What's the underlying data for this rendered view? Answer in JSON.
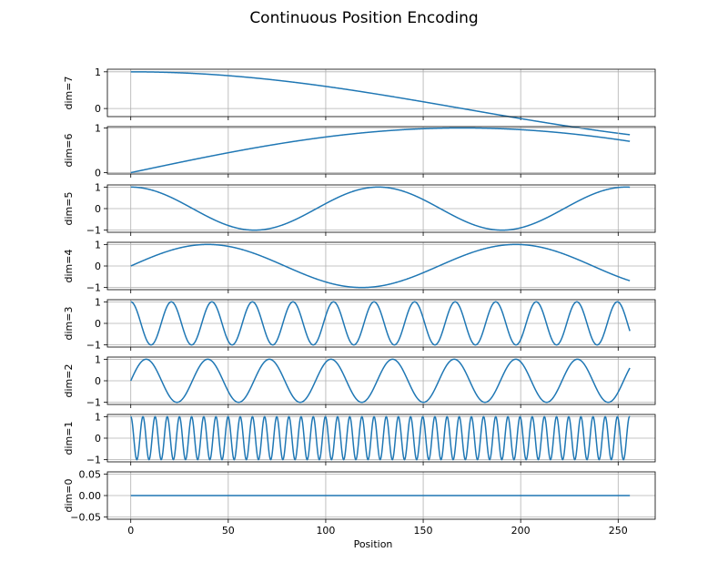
{
  "chart_data": {
    "type": "line",
    "title": "Continuous Position Encoding",
    "xlabel": "Position",
    "x_range": [
      0,
      256
    ],
    "xlim": [
      -12,
      269
    ],
    "xticks": [
      0,
      50,
      100,
      150,
      200,
      250
    ],
    "xtick_labels": [
      "0",
      "50",
      "100",
      "150",
      "200",
      "250"
    ],
    "grid": true,
    "line_color": "#1f77b4",
    "subplots": [
      {
        "ylabel": "dim=7",
        "func": "cos",
        "period": 680,
        "ylim": [
          -0.22,
          1.07
        ],
        "yticks": [
          0,
          1
        ],
        "ytick_labels": [
          "0",
          "1"
        ]
      },
      {
        "ylabel": "dim=6",
        "func": "sin",
        "period": 680,
        "ylim": [
          -0.03,
          1.03
        ],
        "yticks": [
          0,
          1
        ],
        "ytick_labels": [
          "0",
          "1"
        ]
      },
      {
        "ylabel": "dim=5",
        "func": "cos",
        "period": 127,
        "ylim": [
          -1.1,
          1.1
        ],
        "yticks": [
          -1,
          0,
          1
        ],
        "ytick_labels": [
          "−1",
          "0",
          "1"
        ]
      },
      {
        "ylabel": "dim=4",
        "func": "sin",
        "period": 158,
        "ylim": [
          -1.1,
          1.1
        ],
        "yticks": [
          -1,
          0,
          1
        ],
        "ytick_labels": [
          "−1",
          "0",
          "1"
        ]
      },
      {
        "ylabel": "dim=3",
        "func": "cos",
        "period": 20.8,
        "ylim": [
          -1.1,
          1.1
        ],
        "yticks": [
          -1,
          0,
          1
        ],
        "ytick_labels": [
          "−1",
          "0",
          "1"
        ]
      },
      {
        "ylabel": "dim=2",
        "func": "sin",
        "period": 31.6,
        "ylim": [
          -1.1,
          1.1
        ],
        "yticks": [
          -1,
          0,
          1
        ],
        "ytick_labels": [
          "−1",
          "0",
          "1"
        ]
      },
      {
        "ylabel": "dim=1",
        "func": "cos",
        "period": 6.24,
        "ylim": [
          -1.1,
          1.1
        ],
        "yticks": [
          -1,
          0,
          1
        ],
        "ytick_labels": [
          "−1",
          "0",
          "1"
        ]
      },
      {
        "ylabel": "dim=0",
        "func": "zero",
        "period": 0,
        "ylim": [
          -0.055,
          0.055
        ],
        "yticks": [
          -0.05,
          0,
          0.05
        ],
        "ytick_labels": [
          "−0.05",
          "0.00",
          "0.05"
        ]
      }
    ]
  }
}
